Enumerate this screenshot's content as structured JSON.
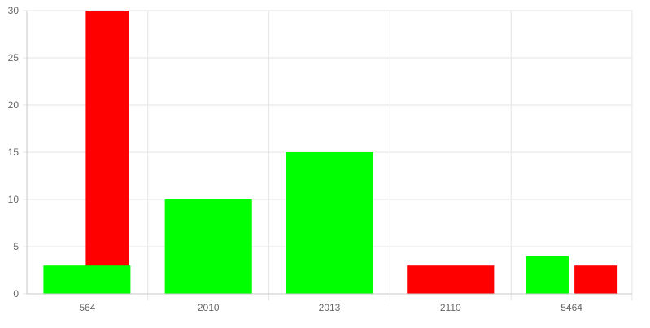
{
  "chart_data": {
    "type": "bar",
    "categories": [
      "564",
      "2010",
      "2013",
      "2110",
      "5464"
    ],
    "series": [
      {
        "color": "#00ff00",
        "values": [
          3,
          10,
          15,
          null,
          4
        ]
      },
      {
        "color": "#ff0000",
        "values": [
          30,
          null,
          null,
          3,
          3
        ]
      }
    ],
    "ylim": [
      0,
      30
    ],
    "yticks": [
      0,
      5,
      10,
      15,
      20,
      25,
      30
    ],
    "grid": true,
    "legend": "none",
    "title": "",
    "xlabel": "",
    "ylabel": ""
  }
}
